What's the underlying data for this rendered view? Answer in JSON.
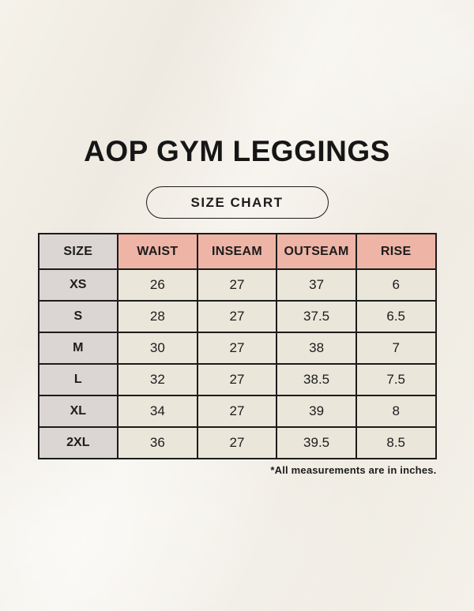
{
  "page": {
    "title": "AOP GYM LEGGINGS",
    "badge_label": "SIZE CHART",
    "footnote": "*All measurements are in inches."
  },
  "chart_data": {
    "type": "table",
    "title": "AOP GYM LEGGINGS",
    "subtitle": "SIZE CHART",
    "columns": [
      "SIZE",
      "WAIST",
      "INSEAM",
      "OUTSEAM",
      "RISE"
    ],
    "rows": [
      [
        "XS",
        26,
        27,
        37,
        6
      ],
      [
        "S",
        28,
        27,
        37.5,
        6.5
      ],
      [
        "M",
        30,
        27,
        38,
        7
      ],
      [
        "L",
        32,
        27,
        38.5,
        7.5
      ],
      [
        "XL",
        34,
        27,
        39,
        8
      ],
      [
        "2XL",
        36,
        27,
        39.5,
        8.5
      ]
    ],
    "note": "*All measurements are in inches.",
    "units": "inches"
  },
  "colors": {
    "background_cream": "#f2efe7",
    "header_pink": "#eeb4a6",
    "size_column_gray": "#dbd5d4",
    "cell_cream": "#eae6da",
    "border_black": "#1c1c1c",
    "text_black": "#161616"
  }
}
